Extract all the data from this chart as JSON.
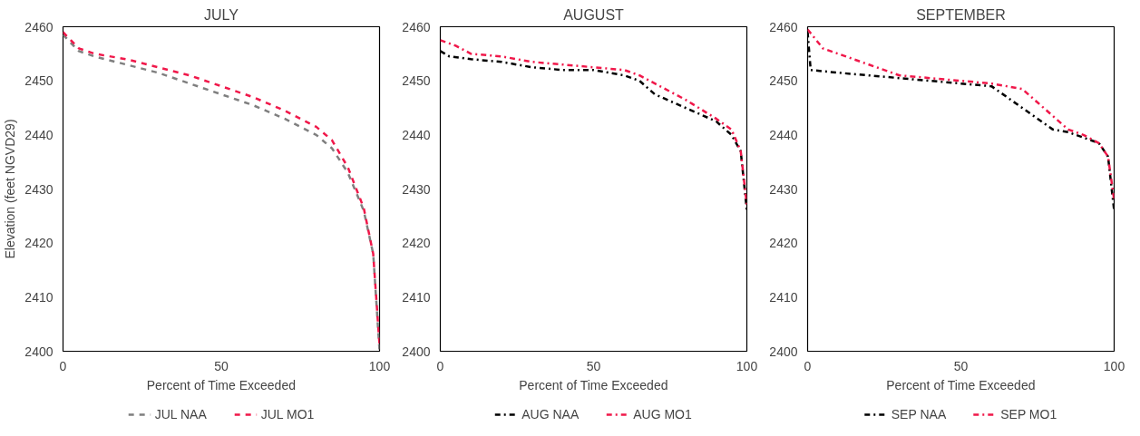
{
  "chart_data": [
    {
      "type": "line",
      "title": "JULY",
      "xlabel": "Percent of Time Exceeded",
      "ylabel": "Elevation (feet NGVD29)",
      "xlim": [
        0,
        100
      ],
      "ylim": [
        2400,
        2460
      ],
      "xticks": [
        0,
        50,
        100
      ],
      "yticks": [
        2400,
        2410,
        2420,
        2430,
        2440,
        2450,
        2460
      ],
      "grid": false,
      "legend": "bottom",
      "marker": "none",
      "line_style": "dashed",
      "series": [
        {
          "name": "JUL NAA",
          "color": "#7f7f7f",
          "x": [
            0,
            5,
            10,
            20,
            30,
            40,
            50,
            60,
            70,
            80,
            85,
            90,
            95,
            98,
            100
          ],
          "values": [
            2458.5,
            2455.5,
            2454.5,
            2453,
            2451.5,
            2449.5,
            2447.5,
            2445.5,
            2443,
            2440,
            2437.5,
            2433,
            2426,
            2418,
            2400
          ]
        },
        {
          "name": "JUL MO1",
          "color": "#f0184a",
          "x": [
            0,
            5,
            10,
            20,
            30,
            40,
            50,
            60,
            70,
            80,
            85,
            90,
            95,
            98,
            100
          ],
          "values": [
            2459,
            2456,
            2455,
            2454,
            2452.5,
            2451,
            2449,
            2447,
            2444.5,
            2441.5,
            2439,
            2434,
            2426.5,
            2418,
            2401
          ]
        }
      ]
    },
    {
      "type": "line",
      "title": "AUGUST",
      "xlabel": "Percent of Time Exceeded",
      "xlim": [
        0,
        100
      ],
      "ylim": [
        2400,
        2460
      ],
      "xticks": [
        0,
        50,
        100
      ],
      "yticks": [
        2400,
        2410,
        2420,
        2430,
        2440,
        2450,
        2460
      ],
      "grid": false,
      "legend": "bottom",
      "marker": "none",
      "line_style": "dashed",
      "series": [
        {
          "name": "AUG NAA",
          "color": "#000000",
          "x": [
            0,
            3,
            10,
            20,
            30,
            40,
            50,
            60,
            65,
            70,
            80,
            90,
            95,
            98,
            100
          ],
          "values": [
            2455.5,
            2454.5,
            2454,
            2453.5,
            2452.5,
            2452,
            2452,
            2451,
            2450,
            2447.5,
            2445,
            2442.5,
            2440,
            2437,
            2426
          ]
        },
        {
          "name": "AUG MO1",
          "color": "#f0184a",
          "x": [
            0,
            5,
            10,
            20,
            30,
            40,
            50,
            60,
            65,
            70,
            80,
            90,
            95,
            98,
            100
          ],
          "values": [
            2457.5,
            2456.5,
            2455,
            2454.5,
            2453.5,
            2453,
            2452.5,
            2452,
            2451,
            2449.5,
            2446.5,
            2443,
            2441,
            2437,
            2427
          ]
        }
      ]
    },
    {
      "type": "line",
      "title": "SEPTEMBER",
      "xlabel": "Percent of Time Exceeded",
      "xlim": [
        0,
        100
      ],
      "ylim": [
        2400,
        2460
      ],
      "xticks": [
        0,
        50,
        100
      ],
      "yticks": [
        2400,
        2410,
        2420,
        2430,
        2440,
        2450,
        2460
      ],
      "grid": false,
      "legend": "bottom",
      "marker": "none",
      "line_style": "dashed",
      "series": [
        {
          "name": "SEP NAA",
          "color": "#000000",
          "x": [
            0,
            1,
            10,
            20,
            30,
            40,
            50,
            60,
            65,
            70,
            75,
            80,
            85,
            90,
            95,
            98,
            100
          ],
          "values": [
            2459,
            2452,
            2451.5,
            2451,
            2450.5,
            2450,
            2449.5,
            2449,
            2447,
            2445,
            2443,
            2441,
            2440.5,
            2439.5,
            2438.5,
            2436,
            2426
          ]
        },
        {
          "name": "SEP MO1",
          "color": "#f0184a",
          "x": [
            0,
            5,
            10,
            20,
            30,
            40,
            50,
            60,
            70,
            75,
            80,
            85,
            90,
            95,
            98,
            100
          ],
          "values": [
            2459.5,
            2456,
            2455,
            2453,
            2451,
            2450.5,
            2450,
            2449.5,
            2448.5,
            2446,
            2443.5,
            2441,
            2440,
            2438.5,
            2436,
            2428
          ]
        }
      ]
    }
  ]
}
